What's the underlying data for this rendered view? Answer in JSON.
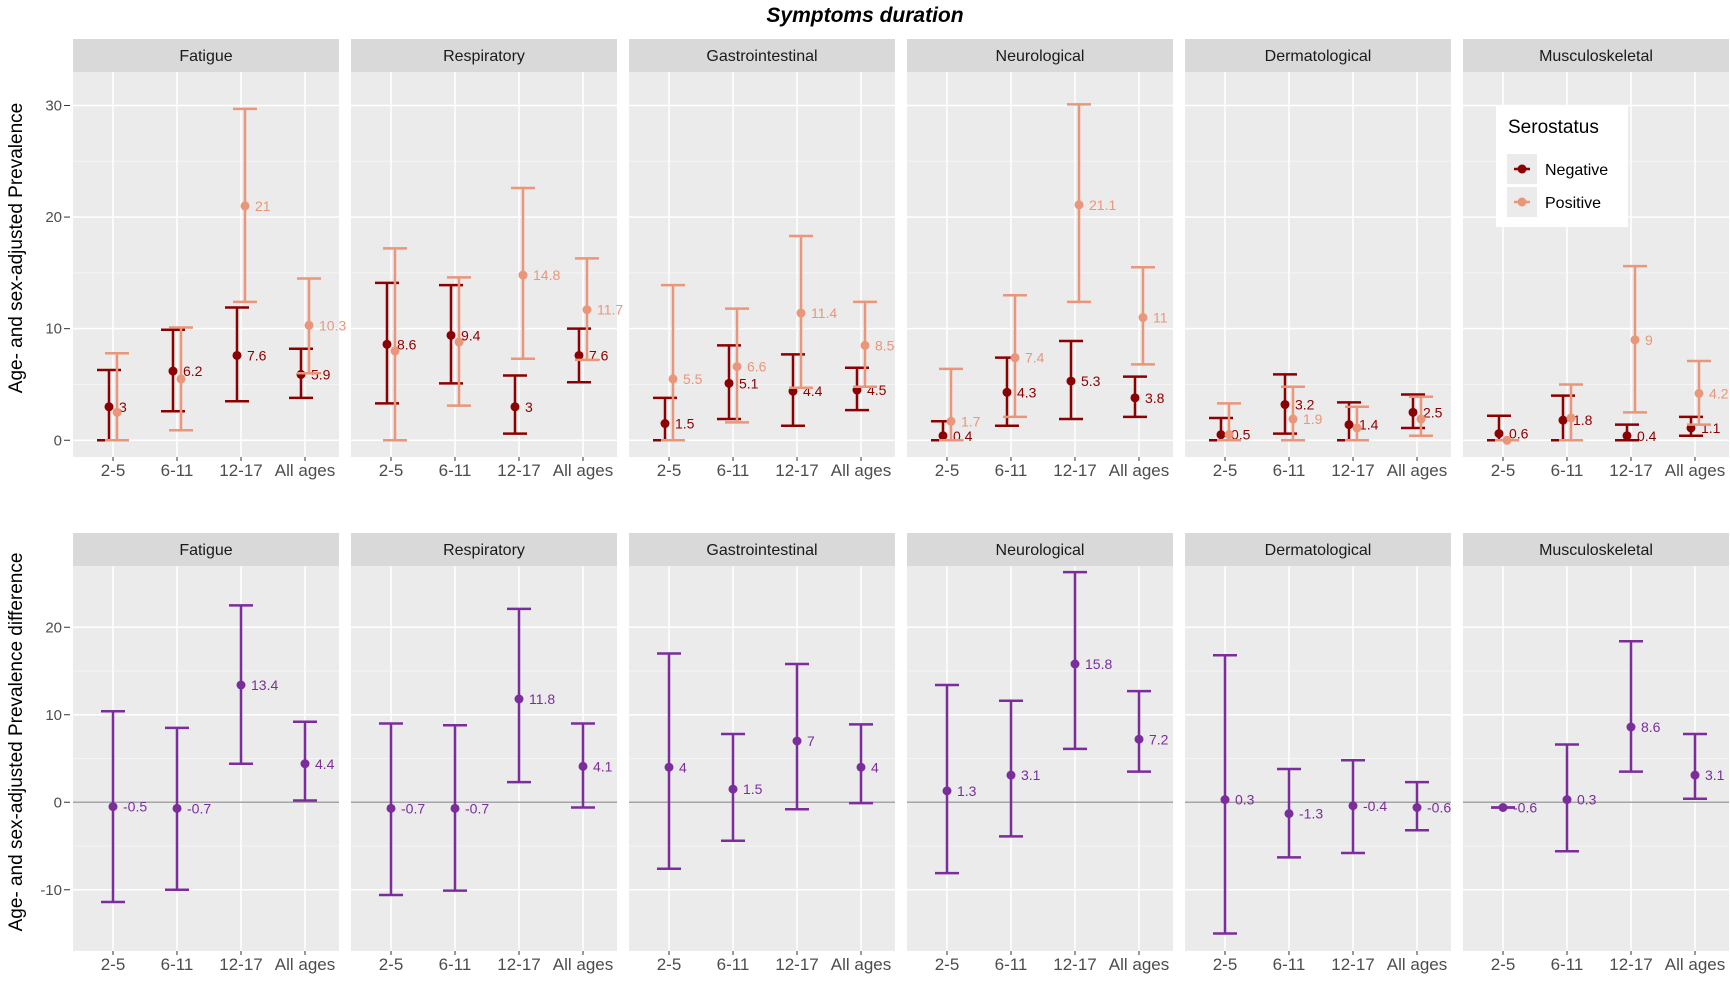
{
  "chart_data": {
    "type": "scatter",
    "title": "Symptoms duration",
    "categories": [
      "2-5",
      "6-11",
      "12-17",
      "All ages"
    ],
    "panels": [
      "Fatigue",
      "Respiratory",
      "Gastrointestinal",
      "Neurological",
      "Dermatological",
      "Musculoskeletal"
    ],
    "colors": {
      "negative": "#8B0000",
      "positive": "#E9967A",
      "difference": "#7B2D9B",
      "panel_bg": "#EBEBEB",
      "strip_bg": "#D9D9D9",
      "grid": "#FFFFFF",
      "zero_line": "#A6A6A6"
    },
    "top": {
      "ylabel": "Age- and sex-adjusted Prevalence",
      "ylim": [
        -1.5,
        33
      ],
      "yticks": [
        0,
        10,
        20,
        30
      ],
      "legend": {
        "title": "Serostatus",
        "placement": "top-right (inside Musculoskeletal panel)",
        "entries": [
          "Negative",
          "Positive"
        ]
      },
      "series": [
        {
          "name": "Negative",
          "panels": [
            {
              "points": [
                {
                  "y": 3,
                  "lo": 0,
                  "hi": 6.3,
                  "label": "3"
                },
                {
                  "y": 6.2,
                  "lo": 2.6,
                  "hi": 9.9,
                  "label": "6.2"
                },
                {
                  "y": 7.6,
                  "lo": 3.5,
                  "hi": 11.9,
                  "label": "7.6"
                },
                {
                  "y": 5.9,
                  "lo": 3.8,
                  "hi": 8.2,
                  "label": "5.9"
                }
              ]
            },
            {
              "points": [
                {
                  "y": 8.6,
                  "lo": 3.3,
                  "hi": 14.1,
                  "label": "8.6"
                },
                {
                  "y": 9.4,
                  "lo": 5.1,
                  "hi": 13.9,
                  "label": "9.4"
                },
                {
                  "y": 3,
                  "lo": 0.6,
                  "hi": 5.8,
                  "label": "3"
                },
                {
                  "y": 7.6,
                  "lo": 5.2,
                  "hi": 10,
                  "label": "7.6"
                }
              ]
            },
            {
              "points": [
                {
                  "y": 1.5,
                  "lo": 0,
                  "hi": 3.8,
                  "label": "1.5"
                },
                {
                  "y": 5.1,
                  "lo": 1.9,
                  "hi": 8.5,
                  "label": "5.1"
                },
                {
                  "y": 4.4,
                  "lo": 1.3,
                  "hi": 7.7,
                  "label": "4.4"
                },
                {
                  "y": 4.5,
                  "lo": 2.7,
                  "hi": 6.5,
                  "label": "4.5"
                }
              ]
            },
            {
              "points": [
                {
                  "y": 0.4,
                  "lo": 0,
                  "hi": 1.7,
                  "label": "0.4"
                },
                {
                  "y": 4.3,
                  "lo": 1.3,
                  "hi": 7.4,
                  "label": "4.3"
                },
                {
                  "y": 5.3,
                  "lo": 1.9,
                  "hi": 8.9,
                  "label": "5.3"
                },
                {
                  "y": 3.8,
                  "lo": 2.1,
                  "hi": 5.7,
                  "label": "3.8"
                }
              ]
            },
            {
              "points": [
                {
                  "y": 0.5,
                  "lo": 0,
                  "hi": 2,
                  "label": "0.5"
                },
                {
                  "y": 3.2,
                  "lo": 0.6,
                  "hi": 5.9,
                  "label": "3.2"
                },
                {
                  "y": 1.4,
                  "lo": 0,
                  "hi": 3.4,
                  "label": "1.4"
                },
                {
                  "y": 2.5,
                  "lo": 1.1,
                  "hi": 4.1,
                  "label": "2.5"
                }
              ]
            },
            {
              "points": [
                {
                  "y": 0.6,
                  "lo": 0,
                  "hi": 2.2,
                  "label": "0.6"
                },
                {
                  "y": 1.8,
                  "lo": 0,
                  "hi": 4,
                  "label": "1.8"
                },
                {
                  "y": 0.4,
                  "lo": 0,
                  "hi": 1.4,
                  "label": "0.4"
                },
                {
                  "y": 1.1,
                  "lo": 0.4,
                  "hi": 2.1,
                  "label": "1.1"
                }
              ]
            }
          ]
        },
        {
          "name": "Positive",
          "panels": [
            {
              "points": [
                {
                  "y": 2.5,
                  "lo": 0,
                  "hi": 7.8,
                  "label": ""
                },
                {
                  "y": 5.5,
                  "lo": 0.9,
                  "hi": 10.1,
                  "label": ""
                },
                {
                  "y": 21,
                  "lo": 12.4,
                  "hi": 29.7,
                  "label": "21"
                },
                {
                  "y": 10.3,
                  "lo": 6,
                  "hi": 14.5,
                  "label": "10.3"
                }
              ]
            },
            {
              "points": [
                {
                  "y": 8,
                  "lo": 0,
                  "hi": 17.2,
                  "label": ""
                },
                {
                  "y": 8.8,
                  "lo": 3.1,
                  "hi": 14.6,
                  "label": ""
                },
                {
                  "y": 14.8,
                  "lo": 7.3,
                  "hi": 22.6,
                  "label": "14.8"
                },
                {
                  "y": 11.7,
                  "lo": 7.2,
                  "hi": 16.3,
                  "label": "11.7"
                }
              ]
            },
            {
              "points": [
                {
                  "y": 5.5,
                  "lo": 0,
                  "hi": 13.9,
                  "label": "5.5"
                },
                {
                  "y": 6.6,
                  "lo": 1.6,
                  "hi": 11.8,
                  "label": "6.6"
                },
                {
                  "y": 11.4,
                  "lo": 4.7,
                  "hi": 18.3,
                  "label": "11.4"
                },
                {
                  "y": 8.5,
                  "lo": 4.8,
                  "hi": 12.4,
                  "label": "8.5"
                }
              ]
            },
            {
              "points": [
                {
                  "y": 1.7,
                  "lo": 0,
                  "hi": 6.4,
                  "label": "1.7"
                },
                {
                  "y": 7.4,
                  "lo": 2.1,
                  "hi": 13,
                  "label": "7.4"
                },
                {
                  "y": 21.1,
                  "lo": 12.4,
                  "hi": 30.1,
                  "label": "21.1"
                },
                {
                  "y": 11,
                  "lo": 6.8,
                  "hi": 15.5,
                  "label": "11"
                }
              ]
            },
            {
              "points": [
                {
                  "y": 0.5,
                  "lo": 0,
                  "hi": 3.3,
                  "label": ""
                },
                {
                  "y": 1.9,
                  "lo": 0,
                  "hi": 4.8,
                  "label": "1.9"
                },
                {
                  "y": 1.1,
                  "lo": 0,
                  "hi": 3,
                  "label": ""
                },
                {
                  "y": 1.9,
                  "lo": 0.4,
                  "hi": 3.9,
                  "label": ""
                }
              ]
            },
            {
              "points": [
                {
                  "y": 0,
                  "lo": 0,
                  "hi": 0,
                  "label": ""
                },
                {
                  "y": 2,
                  "lo": 0,
                  "hi": 5,
                  "label": ""
                },
                {
                  "y": 9,
                  "lo": 2.5,
                  "hi": 15.6,
                  "label": "9"
                },
                {
                  "y": 4.2,
                  "lo": 1.4,
                  "hi": 7.1,
                  "label": "4.2"
                }
              ]
            }
          ]
        }
      ]
    },
    "bottom": {
      "ylabel": "Age- and sex-adjusted Prevalence difference",
      "ylim": [
        -17,
        27
      ],
      "yticks": [
        -10,
        0,
        10,
        20
      ],
      "series": [
        {
          "name": "Difference",
          "panels": [
            {
              "points": [
                {
                  "y": -0.5,
                  "lo": -11.4,
                  "hi": 10.4,
                  "label": "-0.5"
                },
                {
                  "y": -0.7,
                  "lo": -10,
                  "hi": 8.5,
                  "label": "-0.7"
                },
                {
                  "y": 13.4,
                  "lo": 4.4,
                  "hi": 22.5,
                  "label": "13.4"
                },
                {
                  "y": 4.4,
                  "lo": 0.2,
                  "hi": 9.2,
                  "label": "4.4"
                }
              ]
            },
            {
              "points": [
                {
                  "y": -0.7,
                  "lo": -10.6,
                  "hi": 9,
                  "label": "-0.7"
                },
                {
                  "y": -0.7,
                  "lo": -10.1,
                  "hi": 8.8,
                  "label": "-0.7"
                },
                {
                  "y": 11.8,
                  "lo": 2.3,
                  "hi": 22.1,
                  "label": "11.8"
                },
                {
                  "y": 4.1,
                  "lo": -0.6,
                  "hi": 9,
                  "label": "4.1"
                }
              ]
            },
            {
              "points": [
                {
                  "y": 4,
                  "lo": -7.6,
                  "hi": 17,
                  "label": "4"
                },
                {
                  "y": 1.5,
                  "lo": -4.4,
                  "hi": 7.8,
                  "label": "1.5"
                },
                {
                  "y": 7,
                  "lo": -0.8,
                  "hi": 15.8,
                  "label": "7"
                },
                {
                  "y": 4,
                  "lo": -0.1,
                  "hi": 8.9,
                  "label": "4"
                }
              ]
            },
            {
              "points": [
                {
                  "y": 1.3,
                  "lo": -8.1,
                  "hi": 13.4,
                  "label": "1.3"
                },
                {
                  "y": 3.1,
                  "lo": -3.9,
                  "hi": 11.6,
                  "label": "3.1"
                },
                {
                  "y": 15.8,
                  "lo": 6.1,
                  "hi": 26.3,
                  "label": "15.8"
                },
                {
                  "y": 7.2,
                  "lo": 3.5,
                  "hi": 12.7,
                  "label": "7.2"
                }
              ]
            },
            {
              "points": [
                {
                  "y": 0.3,
                  "lo": -15,
                  "hi": 16.8,
                  "label": "0.3"
                },
                {
                  "y": -1.3,
                  "lo": -6.3,
                  "hi": 3.8,
                  "label": "-1.3"
                },
                {
                  "y": -0.4,
                  "lo": -5.8,
                  "hi": 4.8,
                  "label": "-0.4"
                },
                {
                  "y": -0.6,
                  "lo": -3.2,
                  "hi": 2.3,
                  "label": "-0.6"
                }
              ]
            },
            {
              "points": [
                {
                  "y": -0.6,
                  "lo": -0.6,
                  "hi": -0.6,
                  "label": "-0.6"
                },
                {
                  "y": 0.3,
                  "lo": -5.6,
                  "hi": 6.6,
                  "label": "0.3"
                },
                {
                  "y": 8.6,
                  "lo": 3.5,
                  "hi": 18.4,
                  "label": "8.6"
                },
                {
                  "y": 3.1,
                  "lo": 0.4,
                  "hi": 7.8,
                  "label": "3.1"
                }
              ]
            }
          ]
        }
      ]
    }
  }
}
